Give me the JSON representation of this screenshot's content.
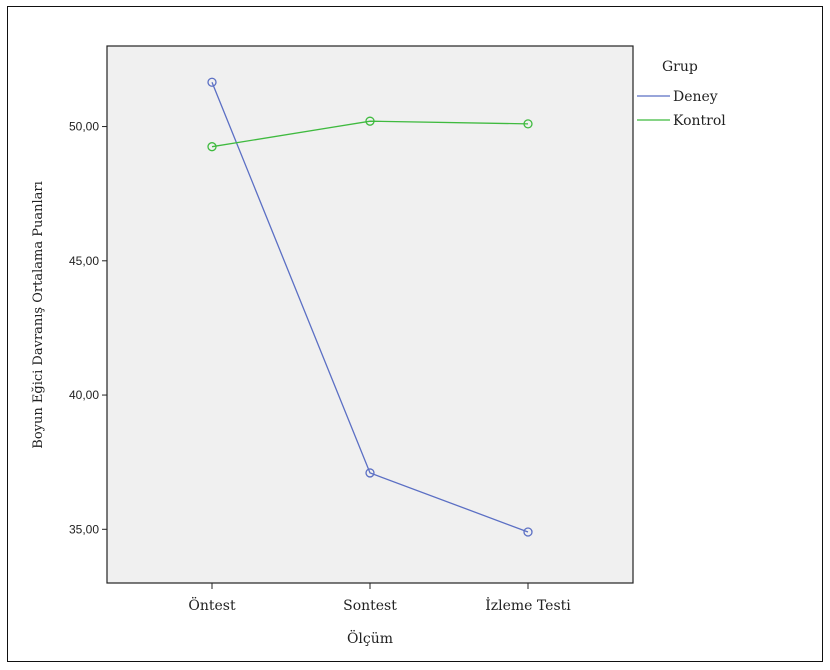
{
  "chart_data": {
    "type": "line",
    "title": "",
    "xlabel": "Ölçüm",
    "ylabel": "Boyun Eğici Davranış Ortalama Puanları",
    "categories": [
      "Öntest",
      "Sontest",
      "İzleme Testi"
    ],
    "yticks": [
      "35,00",
      "40,00",
      "45,00",
      "50,00"
    ],
    "ytick_values": [
      35,
      40,
      45,
      50
    ],
    "ylim": [
      33.0,
      53.0
    ],
    "grid": false,
    "legend": {
      "title": "Grup",
      "placement": "right"
    },
    "series": [
      {
        "name": "Deney",
        "color": "#5b6fc4",
        "values": [
          51.65,
          37.1,
          34.9
        ]
      },
      {
        "name": "Kontrol",
        "color": "#3fba3f",
        "values": [
          49.25,
          50.2,
          50.1
        ]
      }
    ],
    "plot_background": "#f0f0f0"
  }
}
